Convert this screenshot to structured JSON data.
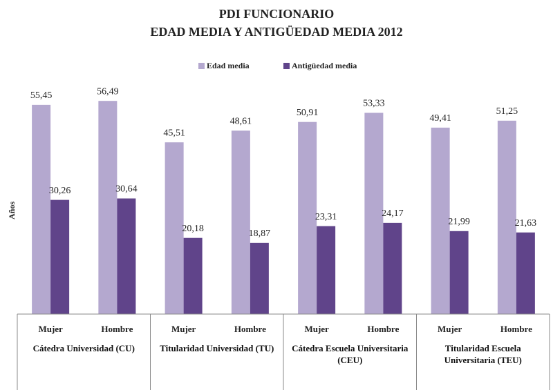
{
  "chart_data": {
    "type": "bar",
    "title": [
      "PDI FUNCIONARIO",
      "EDAD MEDIA Y ANTIGÜEDAD MEDIA 2012"
    ],
    "y_label": "Años",
    "categories": [
      "Mujer",
      "Hombre",
      "Mujer",
      "Hombre",
      "Mujer",
      "Hombre",
      "Mujer",
      "Hombre"
    ],
    "groups": [
      "Cátedra Universidad (CU)",
      "Titularidad Universidad (TU)",
      "Cátedra Escuela Universitaria (CEU)",
      "Titularidad Escuela Universitaria (TEU)"
    ],
    "series": [
      {
        "name": "Edad media",
        "color": "#b4a8cf",
        "values": [
          55.45,
          56.49,
          45.51,
          48.61,
          50.91,
          53.33,
          49.41,
          51.25
        ],
        "value_labels": [
          "55,45",
          "56,49",
          "45,51",
          "48,61",
          "50,91",
          "53,33",
          "49,41",
          "51,25"
        ]
      },
      {
        "name": "Antigüedad media",
        "color": "#60448a",
        "values": [
          30.26,
          30.64,
          20.18,
          18.87,
          23.31,
          24.17,
          21.99,
          21.63
        ],
        "value_labels": [
          "30,26",
          "30,64",
          "20,18",
          "18,87",
          "23,31",
          "24,17",
          "21,99",
          "21,63"
        ]
      }
    ],
    "ylim": [
      0,
      60
    ]
  }
}
